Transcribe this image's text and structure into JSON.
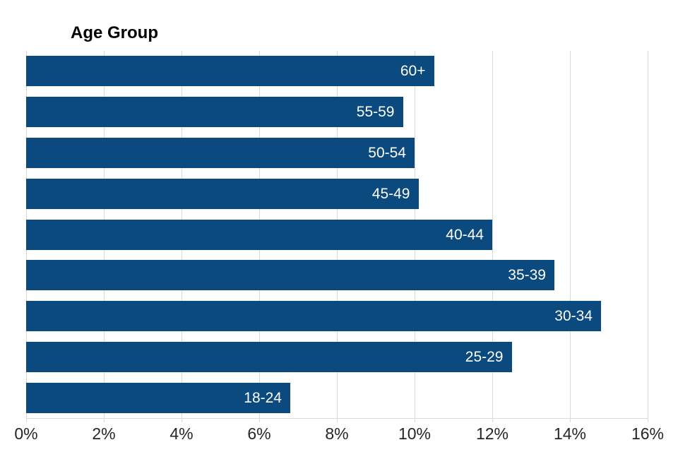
{
  "chart_data": {
    "type": "bar",
    "orientation": "horizontal",
    "title": "Age Group",
    "categories": [
      "60+",
      "55-59",
      "50-54",
      "45-49",
      "40-44",
      "35-39",
      "30-34",
      "25-29",
      "18-24"
    ],
    "values": [
      10.5,
      9.7,
      10.0,
      10.1,
      12.0,
      13.6,
      14.8,
      12.5,
      6.8
    ],
    "bar_labels": [
      "60+",
      "55-59",
      "50-54",
      "45-49",
      "40-44",
      "35-39",
      "30-34",
      "25-29",
      "18-24"
    ],
    "bar_label_position": "inside-end",
    "xlabel": "",
    "ylabel": "",
    "xlim": [
      0,
      16
    ],
    "x_tick_values": [
      0,
      2,
      4,
      6,
      8,
      10,
      12,
      14,
      16
    ],
    "x_tick_labels": [
      "0%",
      "2%",
      "4%",
      "6%",
      "8%",
      "10%",
      "12%",
      "14%",
      "16%"
    ],
    "grid": true,
    "legend": "none",
    "colors": {
      "bar": "#0B4A7E",
      "bar_label_text": "#FFFFFF",
      "gridline": "#D9D9D9",
      "axis_line": "#D9D9D9",
      "tick_label_text": "#262626",
      "title_text": "#000000",
      "background": "#FFFFFF"
    }
  }
}
